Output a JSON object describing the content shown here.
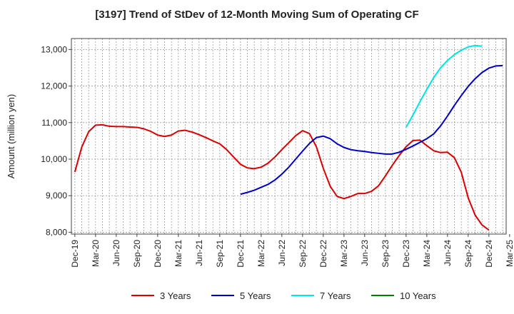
{
  "chart_data": {
    "type": "line",
    "title": "[3197]  Trend of StDev of 12-Month Moving Sum of Operating CF",
    "ylabel": "Amount (million yen)",
    "xlabel": "",
    "ylim": [
      7950,
      13300
    ],
    "yticks": [
      8000,
      9000,
      10000,
      11000,
      12000,
      13000
    ],
    "ytick_labels": [
      "8,000",
      "9,000",
      "10,000",
      "11,000",
      "12,000",
      "13,000"
    ],
    "x_start": "Dec-19",
    "x_count_months": 63,
    "xtick_labels": [
      "Dec-19",
      "Mar-20",
      "Jun-20",
      "Sep-20",
      "Dec-20",
      "Mar-21",
      "Jun-21",
      "Sep-21",
      "Dec-21",
      "Mar-22",
      "Jun-22",
      "Sep-22",
      "Dec-22",
      "Mar-23",
      "Jun-23",
      "Sep-23",
      "Dec-23",
      "Mar-24",
      "Jun-24",
      "Sep-24",
      "Dec-24",
      "Mar-25"
    ],
    "grid": true,
    "legend_position": "bottom",
    "series": [
      {
        "name": "3 Years",
        "color": "#dd0000",
        "start_index": 0,
        "values": [
          9650,
          10330,
          10750,
          10930,
          10940,
          10900,
          10890,
          10890,
          10880,
          10870,
          10830,
          10760,
          10660,
          10620,
          10660,
          10770,
          10790,
          10740,
          10670,
          10590,
          10500,
          10420,
          10260,
          10060,
          9860,
          9760,
          9740,
          9780,
          9890,
          10060,
          10260,
          10450,
          10640,
          10780,
          10700,
          10340,
          9750,
          9260,
          8980,
          8920,
          8980,
          9060,
          9060,
          9120,
          9270,
          9540,
          9830,
          10100,
          10340,
          10510,
          10520,
          10370,
          10230,
          10180,
          10190,
          10040,
          9640,
          8940,
          8470,
          8200,
          8060
        ]
      },
      {
        "name": "5 Years",
        "color": "#0000cc",
        "start_index": 24,
        "values": [
          9040,
          9090,
          9150,
          9230,
          9310,
          9430,
          9590,
          9780,
          10000,
          10220,
          10430,
          10590,
          10630,
          10560,
          10420,
          10320,
          10260,
          10230,
          10210,
          10180,
          10160,
          10140,
          10140,
          10190,
          10270,
          10360,
          10460,
          10560,
          10690,
          10910,
          11180,
          11470,
          11740,
          11990,
          12200,
          12370,
          12490,
          12550,
          12560
        ]
      },
      {
        "name": "7 Years",
        "color": "#00e5e5",
        "start_index": 48,
        "values": [
          10870,
          11210,
          11570,
          11910,
          12230,
          12500,
          12700,
          12860,
          12980,
          13070,
          13110,
          13090
        ]
      },
      {
        "name": "10 Years",
        "color": "#008000",
        "start_index": 0,
        "values": []
      }
    ]
  }
}
